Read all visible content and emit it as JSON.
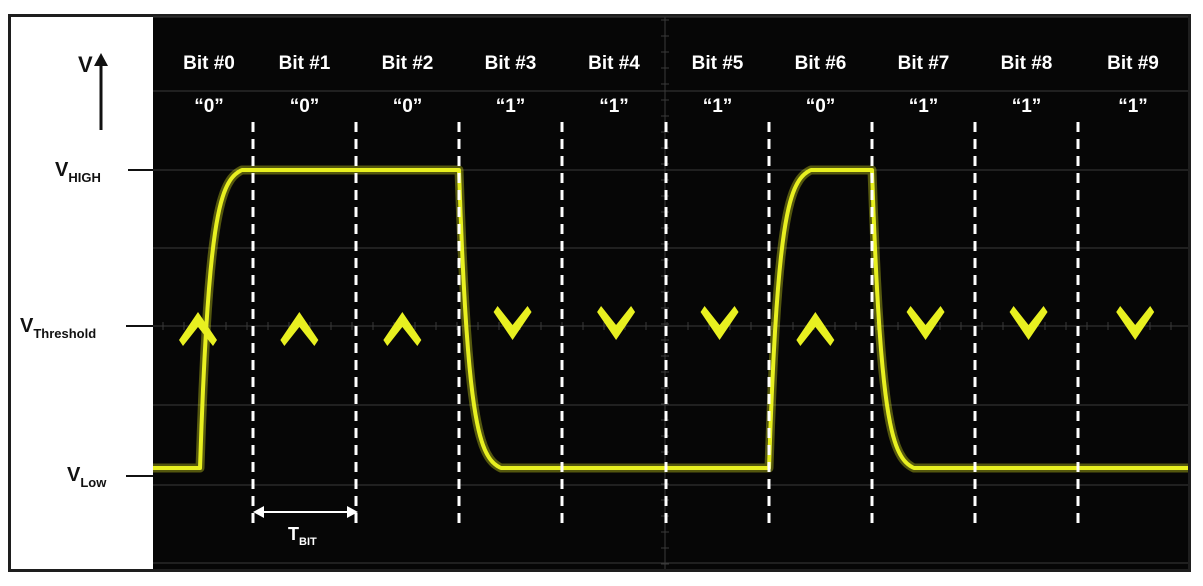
{
  "axis": {
    "v_label": "V",
    "levels": {
      "high": {
        "main": "V",
        "sub": "HIGH"
      },
      "threshold": {
        "main": "V",
        "sub": "Threshold"
      },
      "low": {
        "main": "V",
        "sub": "Low"
      }
    }
  },
  "bits": [
    {
      "label": "Bit #0",
      "value": "“0”"
    },
    {
      "label": "Bit #1",
      "value": "“0”"
    },
    {
      "label": "Bit #2",
      "value": "“0”"
    },
    {
      "label": "Bit #3",
      "value": "“1”"
    },
    {
      "label": "Bit #4",
      "value": "“1”"
    },
    {
      "label": "Bit #5",
      "value": "“1”"
    },
    {
      "label": "Bit #6",
      "value": "“0”"
    },
    {
      "label": "Bit #7",
      "value": "“1”"
    },
    {
      "label": "Bit #8",
      "value": "“1”"
    },
    {
      "label": "Bit #9",
      "value": "“1”"
    }
  ],
  "waveform": {
    "levels": [
      0,
      1,
      1,
      1,
      0,
      0,
      0,
      1,
      0,
      0,
      0
    ],
    "transitions": [
      "rise",
      "rise",
      "rise",
      "fall",
      "fall",
      "fall",
      "rise",
      "fall",
      "fall",
      "fall"
    ],
    "color": "#e8f020"
  },
  "tbit": {
    "main": "T",
    "sub": "BIT"
  },
  "colors": {
    "screen": "#060606",
    "grid": "#3a3a3a",
    "text": "#ffffff",
    "trace": "#e8f020"
  }
}
